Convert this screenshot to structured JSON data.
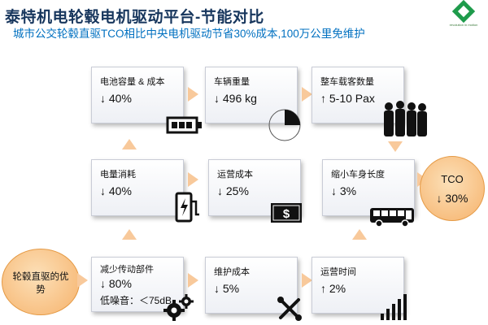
{
  "header": {
    "title": "泰特机电轮毂电机驱动平台-节能对比",
    "subtitle": "城市公交轮毂直驱TCO相比中央电机驱动节省30%成本,100万公里免维护"
  },
  "logo": {
    "text": "revolution in motion",
    "icon": "company-logo-icon"
  },
  "boxes": {
    "battery": {
      "label": "电池容量 & 成本",
      "value": "↓ 40%"
    },
    "weight": {
      "label": "车辆重量",
      "value": "↓ 496 kg"
    },
    "passengers": {
      "label": "整车载客数量",
      "value": "↑ 5-10 Pax"
    },
    "power": {
      "label": "电量消耗",
      "value": "↓ 40%"
    },
    "opcost": {
      "label": "运营成本",
      "value": "↓ 25%"
    },
    "length": {
      "label": "缩小车身长度",
      "value": "↓ 3%"
    },
    "transmission": {
      "label": "减少传动部件",
      "value": "↓ 80%",
      "extra": "低噪音：＜75dB"
    },
    "maintenance": {
      "label": "维护成本",
      "value": "↓ 5%"
    },
    "uptime": {
      "label": "运营时间",
      "value": "↑ 2%"
    }
  },
  "start": {
    "label": "轮毂直驱的优势"
  },
  "tco": {
    "label": "TCO",
    "value": "↓ 30%"
  },
  "colors": {
    "title": "#17365d",
    "subtitle": "#0070c0",
    "arrow": "#f8c99b",
    "circle": "#f6b26b"
  }
}
